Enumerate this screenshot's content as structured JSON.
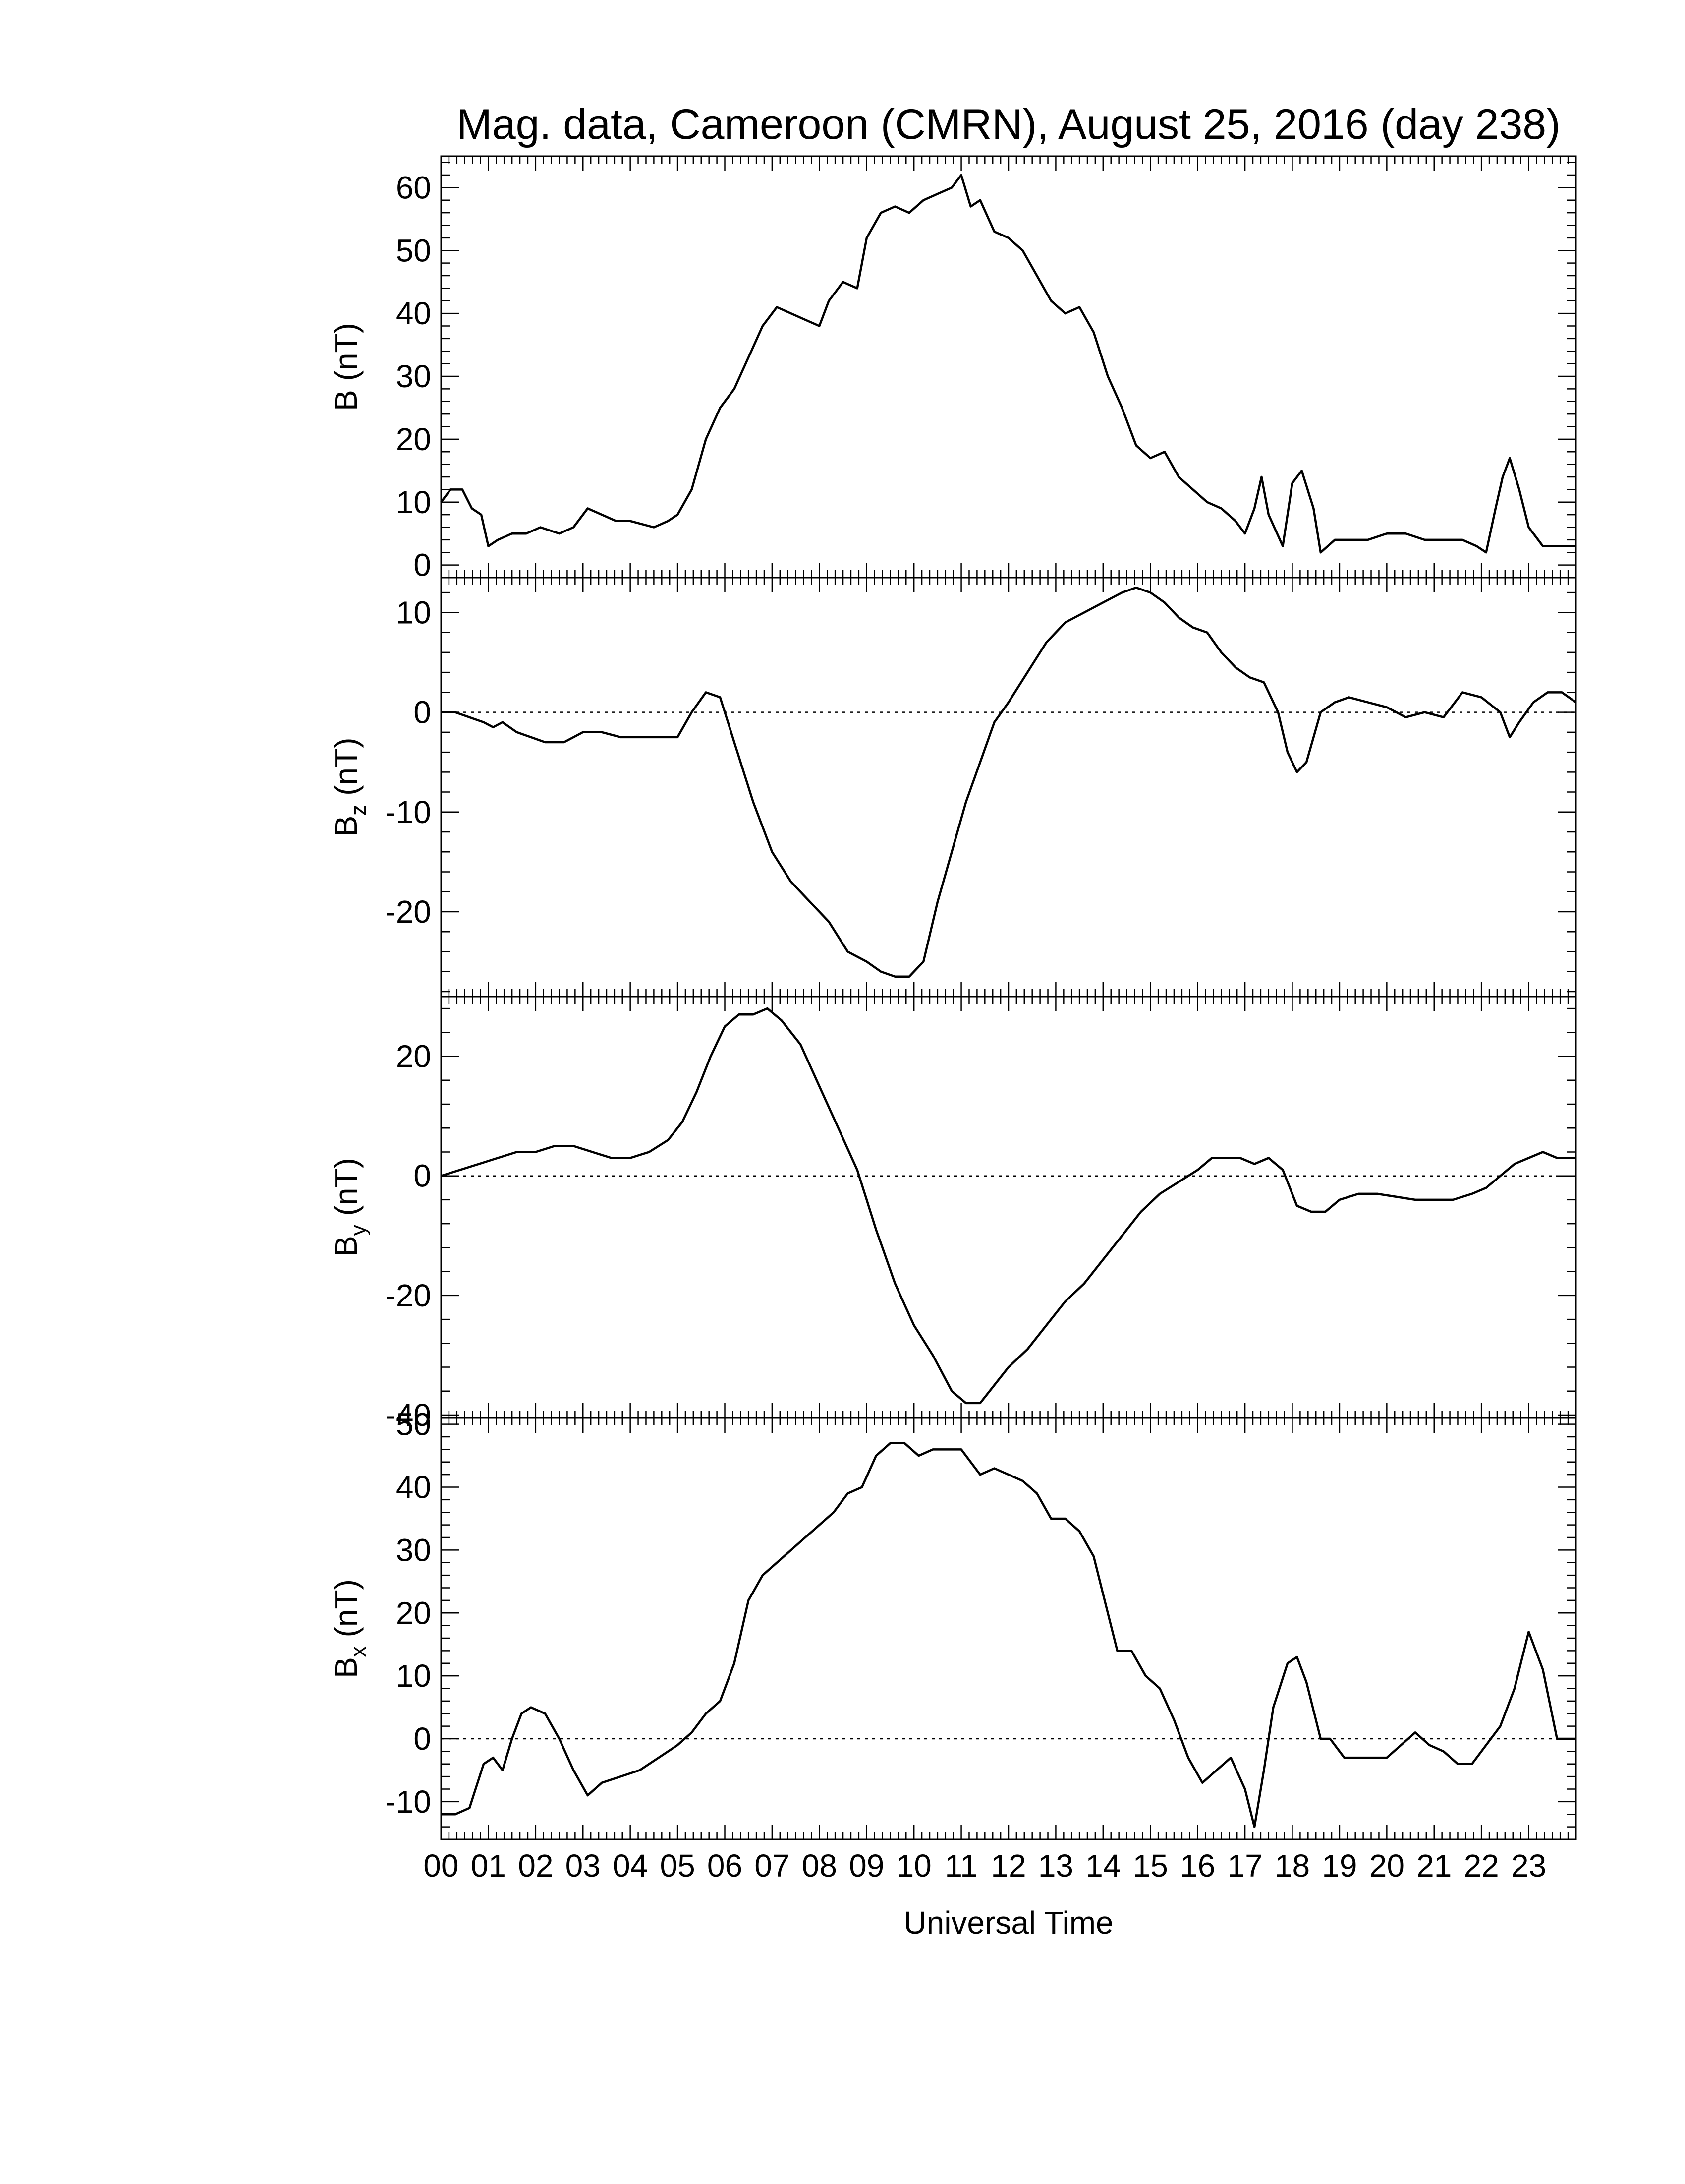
{
  "figure": {
    "title": "Mag. data, Cameroon (CMRN), August 25, 2016 (day 238)",
    "xlabel": "Universal Time"
  },
  "chart_data": [
    {
      "type": "line",
      "id": "B",
      "ylabel": "B (nT)",
      "ylabel_main": "B",
      "ylabel_sub": "",
      "ylabel_unit": "(nT)",
      "ylim": [
        -2,
        65
      ],
      "yticks": [
        0,
        10,
        20,
        30,
        40,
        50,
        60
      ],
      "zero_line": false,
      "xlim": [
        0,
        24
      ],
      "series": [
        {
          "x": [
            0.0,
            0.2,
            0.45,
            0.65,
            0.85,
            1.0,
            1.2,
            1.5,
            1.8,
            2.1,
            2.5,
            2.8,
            3.1,
            3.4,
            3.7,
            4.0,
            4.5,
            4.8,
            5.0,
            5.3,
            5.6,
            5.9,
            6.2,
            6.5,
            6.8,
            7.1,
            7.4,
            7.7,
            8.0,
            8.2,
            8.5,
            8.8,
            9.0,
            9.3,
            9.6,
            9.9,
            10.2,
            10.5,
            10.8,
            11.0,
            11.2,
            11.4,
            11.7,
            12.0,
            12.3,
            12.6,
            12.9,
            13.2,
            13.5,
            13.8,
            14.1,
            14.4,
            14.7,
            15.0,
            15.3,
            15.6,
            15.9,
            16.2,
            16.5,
            16.8,
            17.0,
            17.2,
            17.35,
            17.5,
            17.8,
            18.0,
            18.2,
            18.45,
            18.6,
            18.9,
            19.2,
            19.6,
            20.0,
            20.4,
            20.8,
            21.2,
            21.6,
            21.9,
            22.1,
            22.3,
            22.45,
            22.6,
            22.8,
            23.0,
            23.3,
            23.6,
            24.0
          ],
          "y": [
            10,
            12,
            12,
            9,
            8,
            3,
            4,
            5,
            5,
            6,
            5,
            6,
            9,
            8,
            7,
            7,
            6,
            7,
            8,
            12,
            20,
            25,
            28,
            33,
            38,
            41,
            40,
            39,
            38,
            42,
            45,
            44,
            52,
            56,
            57,
            56,
            58,
            59,
            60,
            62,
            57,
            58,
            53,
            52,
            50,
            46,
            42,
            40,
            41,
            37,
            30,
            25,
            19,
            17,
            18,
            14,
            12,
            10,
            9,
            7,
            5,
            9,
            14,
            8,
            3,
            13,
            15,
            9,
            2,
            4,
            4,
            4,
            5,
            5,
            4,
            4,
            4,
            3,
            2,
            9,
            14,
            17,
            12,
            6,
            3,
            3,
            3
          ]
        }
      ]
    },
    {
      "type": "line",
      "id": "Bz",
      "ylabel": "Bz (nT)",
      "ylabel_main": "B",
      "ylabel_sub": "z",
      "ylabel_unit": "(nT)",
      "ylim": [
        -28.5,
        13.5
      ],
      "yticks": [
        -20,
        -10,
        0,
        10
      ],
      "zero_line": true,
      "xlim": [
        0,
        24
      ],
      "series": [
        {
          "x": [
            0.0,
            0.3,
            0.6,
            0.9,
            1.1,
            1.3,
            1.6,
            1.9,
            2.2,
            2.6,
            3.0,
            3.4,
            3.8,
            4.2,
            4.6,
            5.0,
            5.3,
            5.6,
            5.9,
            6.2,
            6.6,
            7.0,
            7.4,
            7.8,
            8.2,
            8.6,
            9.0,
            9.3,
            9.6,
            9.9,
            10.2,
            10.5,
            10.8,
            11.1,
            11.4,
            11.7,
            12.0,
            12.4,
            12.8,
            13.2,
            13.6,
            14.0,
            14.4,
            14.7,
            15.0,
            15.3,
            15.6,
            15.9,
            16.2,
            16.5,
            16.8,
            17.1,
            17.4,
            17.7,
            17.9,
            18.1,
            18.3,
            18.6,
            18.9,
            19.2,
            19.6,
            20.0,
            20.4,
            20.8,
            21.2,
            21.6,
            22.0,
            22.4,
            22.6,
            22.8,
            23.1,
            23.4,
            23.7,
            24.0
          ],
          "y": [
            0,
            0,
            -0.5,
            -1,
            -1.5,
            -1,
            -2,
            -2.5,
            -3,
            -3,
            -2,
            -2,
            -2.5,
            -2.5,
            -2.5,
            -2.5,
            0,
            2,
            1.5,
            -3,
            -9,
            -14,
            -17,
            -19,
            -21,
            -24,
            -25,
            -26,
            -26.5,
            -26.5,
            -25,
            -19,
            -14,
            -9,
            -5,
            -1,
            1,
            4,
            7,
            9,
            10,
            11,
            12,
            12.5,
            12,
            11,
            9.5,
            8.5,
            8,
            6,
            4.5,
            3.5,
            3,
            0,
            -4,
            -6,
            -5,
            0,
            1,
            1.5,
            1,
            0.5,
            -0.5,
            0,
            -0.5,
            2,
            1.5,
            0,
            -2.5,
            -1,
            1,
            2,
            2,
            1
          ]
        }
      ]
    },
    {
      "type": "line",
      "id": "By",
      "ylabel": "By (nT)",
      "ylabel_main": "B",
      "ylabel_sub": "y",
      "ylabel_unit": "(nT)",
      "ylim": [
        -40.5,
        30
      ],
      "yticks": [
        -40,
        -20,
        0,
        20
      ],
      "zero_line": true,
      "xlim": [
        0,
        24
      ],
      "series": [
        {
          "x": [
            0.0,
            0.4,
            0.8,
            1.2,
            1.6,
            2.0,
            2.4,
            2.8,
            3.2,
            3.6,
            4.0,
            4.4,
            4.8,
            5.1,
            5.4,
            5.7,
            6.0,
            6.3,
            6.6,
            6.9,
            7.2,
            7.6,
            8.0,
            8.4,
            8.8,
            9.2,
            9.6,
            10.0,
            10.4,
            10.8,
            11.1,
            11.4,
            11.7,
            12.0,
            12.4,
            12.8,
            13.2,
            13.6,
            14.0,
            14.4,
            14.8,
            15.2,
            15.6,
            16.0,
            16.3,
            16.6,
            16.9,
            17.2,
            17.5,
            17.8,
            18.1,
            18.4,
            18.7,
            19.0,
            19.4,
            19.8,
            20.2,
            20.6,
            21.0,
            21.4,
            21.8,
            22.1,
            22.4,
            22.7,
            23.0,
            23.3,
            23.6,
            24.0
          ],
          "y": [
            0,
            1,
            2,
            3,
            4,
            4,
            5,
            5,
            4,
            3,
            3,
            4,
            6,
            9,
            14,
            20,
            25,
            27,
            27,
            28,
            26,
            22,
            15,
            8,
            1,
            -9,
            -18,
            -25,
            -30,
            -36,
            -38,
            -38,
            -35,
            -32,
            -29,
            -25,
            -21,
            -18,
            -14,
            -10,
            -6,
            -3,
            -1,
            1,
            3,
            3,
            3,
            2,
            3,
            1,
            -5,
            -6,
            -6,
            -4,
            -3,
            -3,
            -3.5,
            -4,
            -4,
            -4,
            -3,
            -2,
            0,
            2,
            3,
            4,
            3,
            3
          ]
        }
      ]
    },
    {
      "type": "line",
      "id": "Bx",
      "ylabel": "Bx (nT)",
      "ylabel_main": "B",
      "ylabel_sub": "x",
      "ylabel_unit": "(nT)",
      "ylim": [
        -16,
        51
      ],
      "yticks": [
        -10,
        0,
        10,
        20,
        30,
        40,
        50
      ],
      "zero_line": true,
      "xlim": [
        0,
        24
      ],
      "series": [
        {
          "x": [
            0.0,
            0.3,
            0.6,
            0.9,
            1.1,
            1.3,
            1.5,
            1.7,
            1.9,
            2.2,
            2.5,
            2.8,
            3.1,
            3.4,
            3.8,
            4.2,
            4.6,
            5.0,
            5.3,
            5.6,
            5.9,
            6.2,
            6.5,
            6.8,
            7.1,
            7.4,
            7.7,
            8.0,
            8.3,
            8.6,
            8.9,
            9.2,
            9.5,
            9.8,
            10.1,
            10.4,
            10.7,
            11.0,
            11.2,
            11.4,
            11.7,
            12.0,
            12.3,
            12.6,
            12.9,
            13.2,
            13.5,
            13.8,
            14.0,
            14.3,
            14.6,
            14.9,
            15.2,
            15.5,
            15.8,
            16.1,
            16.4,
            16.7,
            17.0,
            17.2,
            17.4,
            17.6,
            17.9,
            18.1,
            18.3,
            18.6,
            18.8,
            19.1,
            19.4,
            19.7,
            20.0,
            20.3,
            20.6,
            20.9,
            21.2,
            21.5,
            21.8,
            22.1,
            22.4,
            22.7,
            23.0,
            23.3,
            23.6,
            24.0
          ],
          "y": [
            -12,
            -12,
            -11,
            -4,
            -3,
            -5,
            0,
            4,
            5,
            4,
            0,
            -5,
            -9,
            -7,
            -6,
            -5,
            -3,
            -1,
            1,
            4,
            6,
            12,
            22,
            26,
            28,
            30,
            32,
            34,
            36,
            39,
            40,
            45,
            47,
            47,
            45,
            46,
            46,
            46,
            44,
            42,
            43,
            42,
            41,
            39,
            35,
            35,
            33,
            29,
            23,
            14,
            14,
            10,
            8,
            3,
            -3,
            -7,
            -5,
            -3,
            -8,
            -14,
            -5,
            5,
            12,
            13,
            9,
            0,
            0,
            -3,
            -3,
            -3,
            -3,
            -1,
            1,
            -1,
            -2,
            -4,
            -4,
            -1,
            2,
            8,
            17,
            11,
            0,
            0
          ]
        }
      ]
    }
  ],
  "x_axis": {
    "tick_labels": [
      "00",
      "01",
      "02",
      "03",
      "04",
      "05",
      "06",
      "07",
      "08",
      "09",
      "10",
      "11",
      "12",
      "13",
      "14",
      "15",
      "16",
      "17",
      "18",
      "19",
      "20",
      "21",
      "22",
      "23"
    ]
  }
}
